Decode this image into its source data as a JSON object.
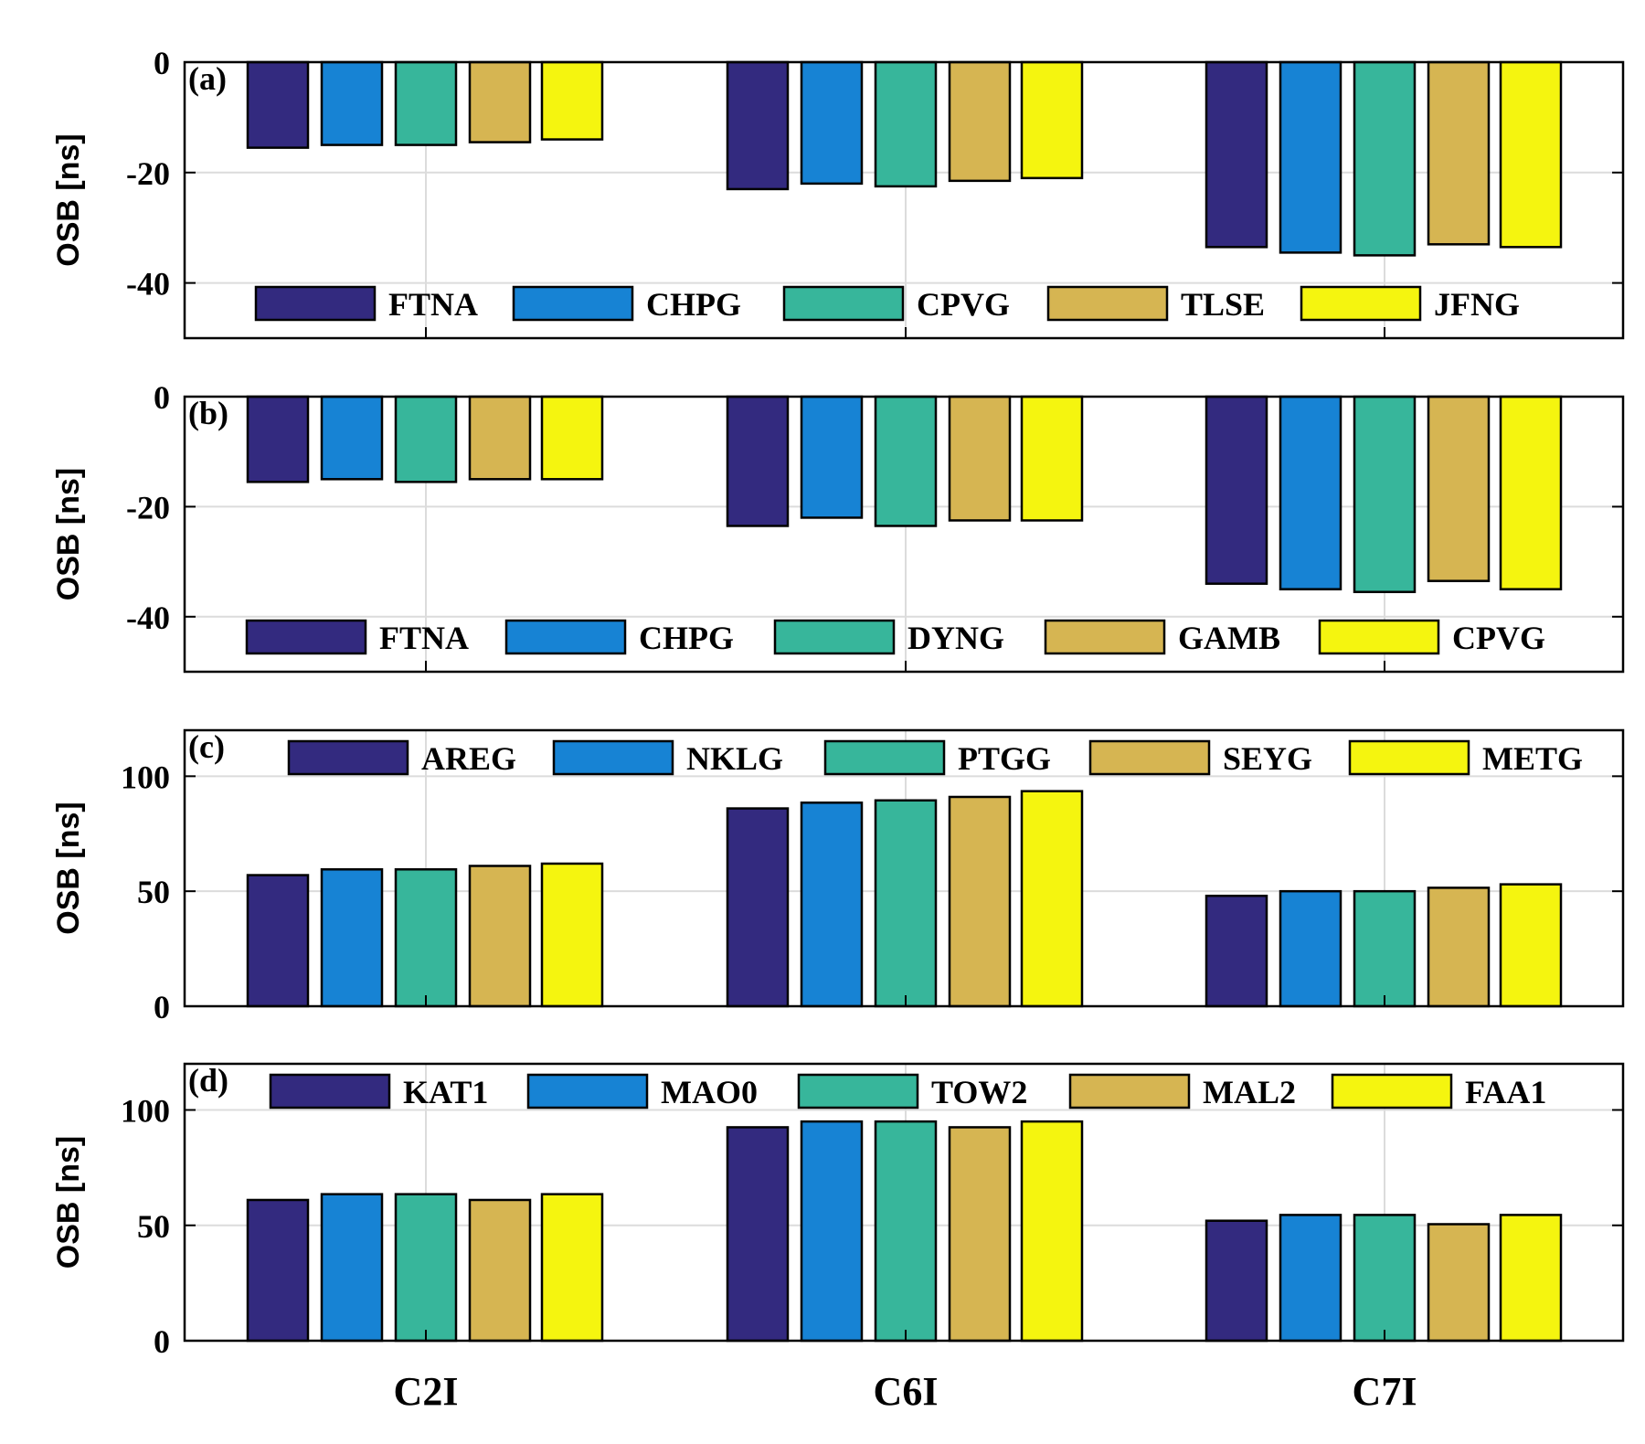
{
  "colors": [
    "#332a7f",
    "#1783d4",
    "#37b69b",
    "#d6b552",
    "#f5f50f"
  ],
  "chart_data": [
    {
      "type": "bar",
      "panel_label": "(a)",
      "categories": [
        "C2I",
        "C6I",
        "C7I"
      ],
      "ylabel": "OSB [ns]",
      "ylim": [
        -50,
        0
      ],
      "yticks": [
        0,
        -20,
        -40
      ],
      "grid": true,
      "legend_position": "bottom",
      "series": [
        {
          "name": "FTNA",
          "values": [
            -15.5,
            -23,
            -33.5
          ]
        },
        {
          "name": "CHPG",
          "values": [
            -15,
            -22,
            -34.5
          ]
        },
        {
          "name": "CPVG",
          "values": [
            -15,
            -22.5,
            -35
          ]
        },
        {
          "name": "TLSE",
          "values": [
            -14.5,
            -21.5,
            -33
          ]
        },
        {
          "name": "JFNG",
          "values": [
            -14,
            -21,
            -33.5
          ]
        }
      ]
    },
    {
      "type": "bar",
      "panel_label": "(b)",
      "categories": [
        "C2I",
        "C6I",
        "C7I"
      ],
      "ylabel": "OSB [ns]",
      "ylim": [
        -50,
        0
      ],
      "yticks": [
        0,
        -20,
        -40
      ],
      "grid": true,
      "legend_position": "bottom",
      "series": [
        {
          "name": "FTNA",
          "values": [
            -15.5,
            -23.5,
            -34
          ]
        },
        {
          "name": "CHPG",
          "values": [
            -15,
            -22,
            -35
          ]
        },
        {
          "name": "DYNG",
          "values": [
            -15.5,
            -23.5,
            -35.5
          ]
        },
        {
          "name": "GAMB",
          "values": [
            -15,
            -22.5,
            -33.5
          ]
        },
        {
          "name": "CPVG",
          "values": [
            -15,
            -22.5,
            -35
          ]
        }
      ]
    },
    {
      "type": "bar",
      "panel_label": "(c)",
      "categories": [
        "C2I",
        "C6I",
        "C7I"
      ],
      "ylabel": "OSB [ns]",
      "ylim": [
        0,
        120
      ],
      "yticks": [
        0,
        50,
        100
      ],
      "grid": true,
      "legend_position": "top",
      "series": [
        {
          "name": "AREG",
          "values": [
            57,
            86,
            48
          ]
        },
        {
          "name": "NKLG",
          "values": [
            59.5,
            88.5,
            50
          ]
        },
        {
          "name": "PTGG",
          "values": [
            59.5,
            89.5,
            50
          ]
        },
        {
          "name": "SEYG",
          "values": [
            61,
            91,
            51.5
          ]
        },
        {
          "name": "METG",
          "values": [
            62,
            93.5,
            53
          ]
        }
      ]
    },
    {
      "type": "bar",
      "panel_label": "(d)",
      "categories": [
        "C2I",
        "C6I",
        "C7I"
      ],
      "ylabel": "OSB [ns]",
      "ylim": [
        0,
        120
      ],
      "yticks": [
        0,
        50,
        100
      ],
      "grid": true,
      "legend_position": "top",
      "series": [
        {
          "name": "KAT1",
          "values": [
            61,
            92.5,
            52
          ]
        },
        {
          "name": "MAO0",
          "values": [
            63.5,
            95,
            54.5
          ]
        },
        {
          "name": "TOW2",
          "values": [
            63.5,
            95,
            54.5
          ]
        },
        {
          "name": "MAL2",
          "values": [
            61,
            92.5,
            50.5
          ]
        },
        {
          "name": "FAA1",
          "values": [
            63.5,
            95,
            54.5
          ]
        }
      ]
    }
  ]
}
